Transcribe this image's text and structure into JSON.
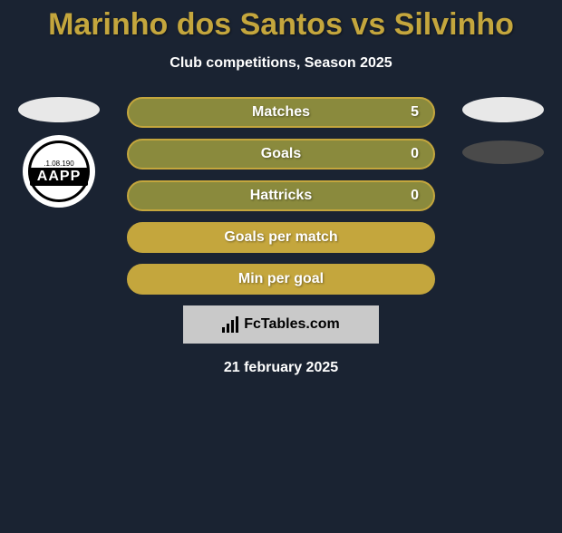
{
  "title": "Marinho dos Santos vs Silvinho",
  "subtitle": "Club competitions, Season 2025",
  "players": {
    "left": {
      "club_date": ".1.08.190",
      "club_abbr": "AAPP"
    }
  },
  "stats": [
    {
      "label": "Matches",
      "right_value": "5",
      "filled": false
    },
    {
      "label": "Goals",
      "right_value": "0",
      "filled": false
    },
    {
      "label": "Hattricks",
      "right_value": "0",
      "filled": false
    },
    {
      "label": "Goals per match",
      "right_value": "",
      "filled": true
    },
    {
      "label": "Min per goal",
      "right_value": "",
      "filled": true
    }
  ],
  "badge_text": "FcTables.com",
  "date_text": "21 february 2025",
  "colors": {
    "background": "#1a2332",
    "accent": "#c4a63d",
    "bar_bg": "#8a8a3d",
    "text_light": "#ffffff"
  }
}
